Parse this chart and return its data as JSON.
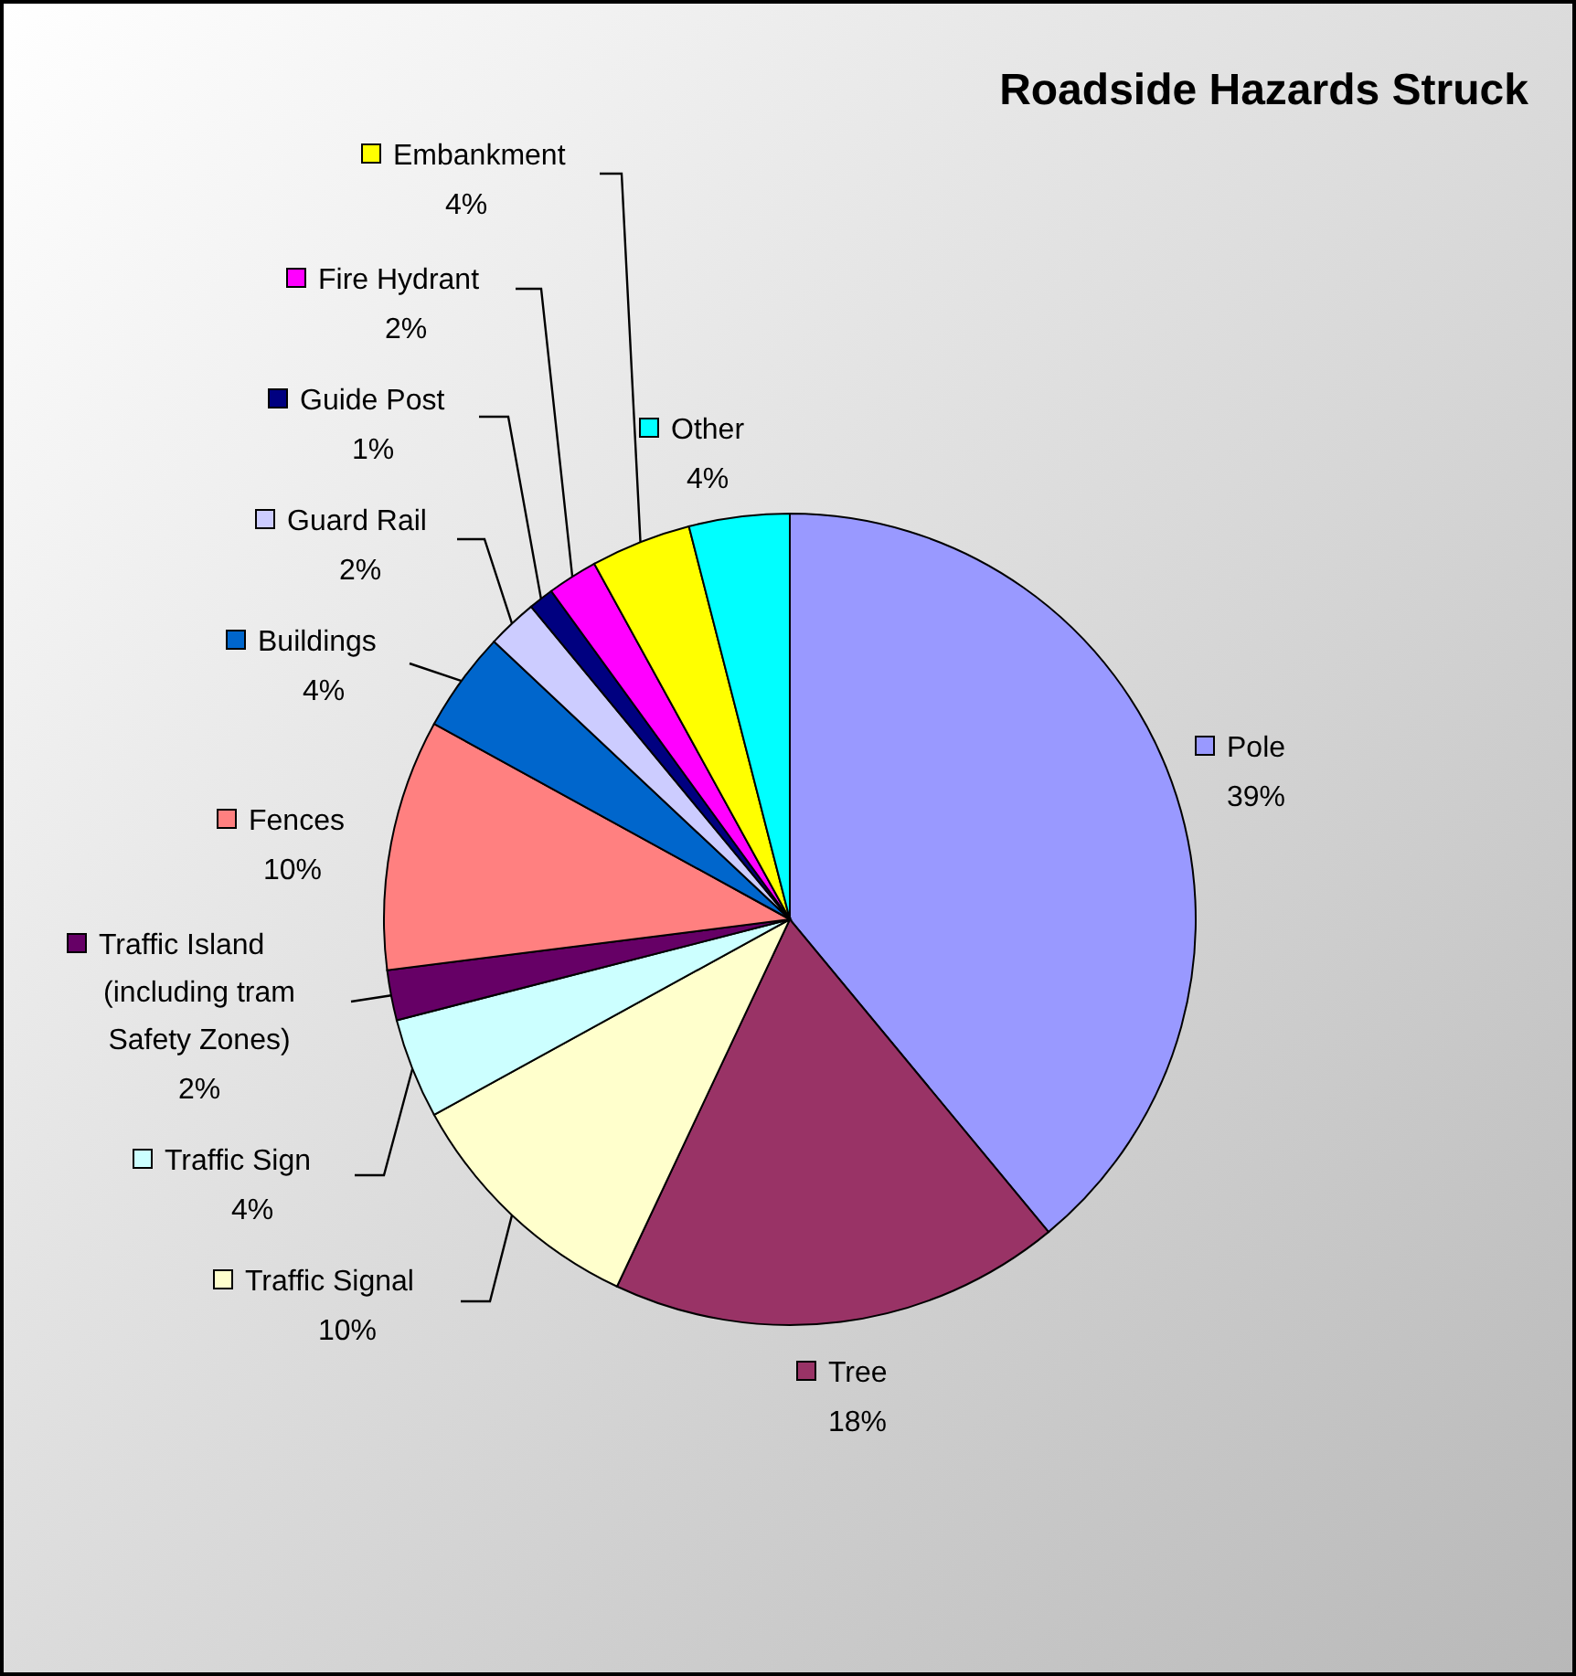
{
  "chart_data": {
    "type": "pie",
    "title": "Roadside Hazards Struck",
    "categories": [
      "Pole",
      "Tree",
      "Traffic Signal",
      "Traffic Sign",
      "Traffic Island (including tram Safety Zones)",
      "Fences",
      "Buildings",
      "Guard Rail",
      "Guide Post",
      "Fire Hydrant",
      "Embankment",
      "Other"
    ],
    "values": [
      39,
      18,
      10,
      4,
      2,
      10,
      4,
      2,
      1,
      2,
      4,
      4
    ],
    "value_labels": [
      "39%",
      "18%",
      "10%",
      "4%",
      "2%",
      "10%",
      "4%",
      "2%",
      "1%",
      "2%",
      "4%",
      "4%"
    ],
    "colors": [
      "#9999ff",
      "#993366",
      "#ffffcc",
      "#ccffff",
      "#660066",
      "#ff8080",
      "#0066cc",
      "#ccccff",
      "#000080",
      "#ff00ff",
      "#ffff00",
      "#00ffff"
    ],
    "legend": "left"
  }
}
